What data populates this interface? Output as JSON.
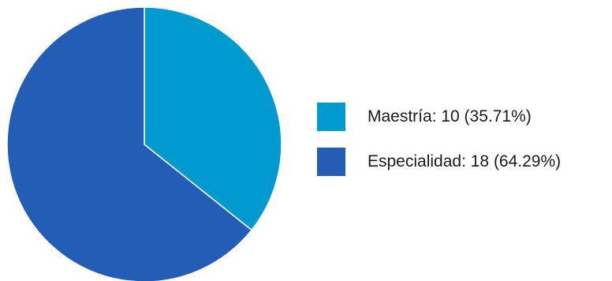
{
  "chart_data": {
    "type": "pie",
    "title": "",
    "start": "12 o'clock",
    "direction": "clockwise",
    "slices": [
      {
        "name": "Maestría",
        "value": 10,
        "percent": 35.71,
        "label": "Maestría: 10 (35.71%)",
        "color": "#009AD0"
      },
      {
        "name": "Especialidad",
        "value": 18,
        "percent": 64.29,
        "label": "Especialidad: 18 (64.29%)",
        "color": "#245DB5"
      }
    ],
    "legend_position": "right"
  }
}
